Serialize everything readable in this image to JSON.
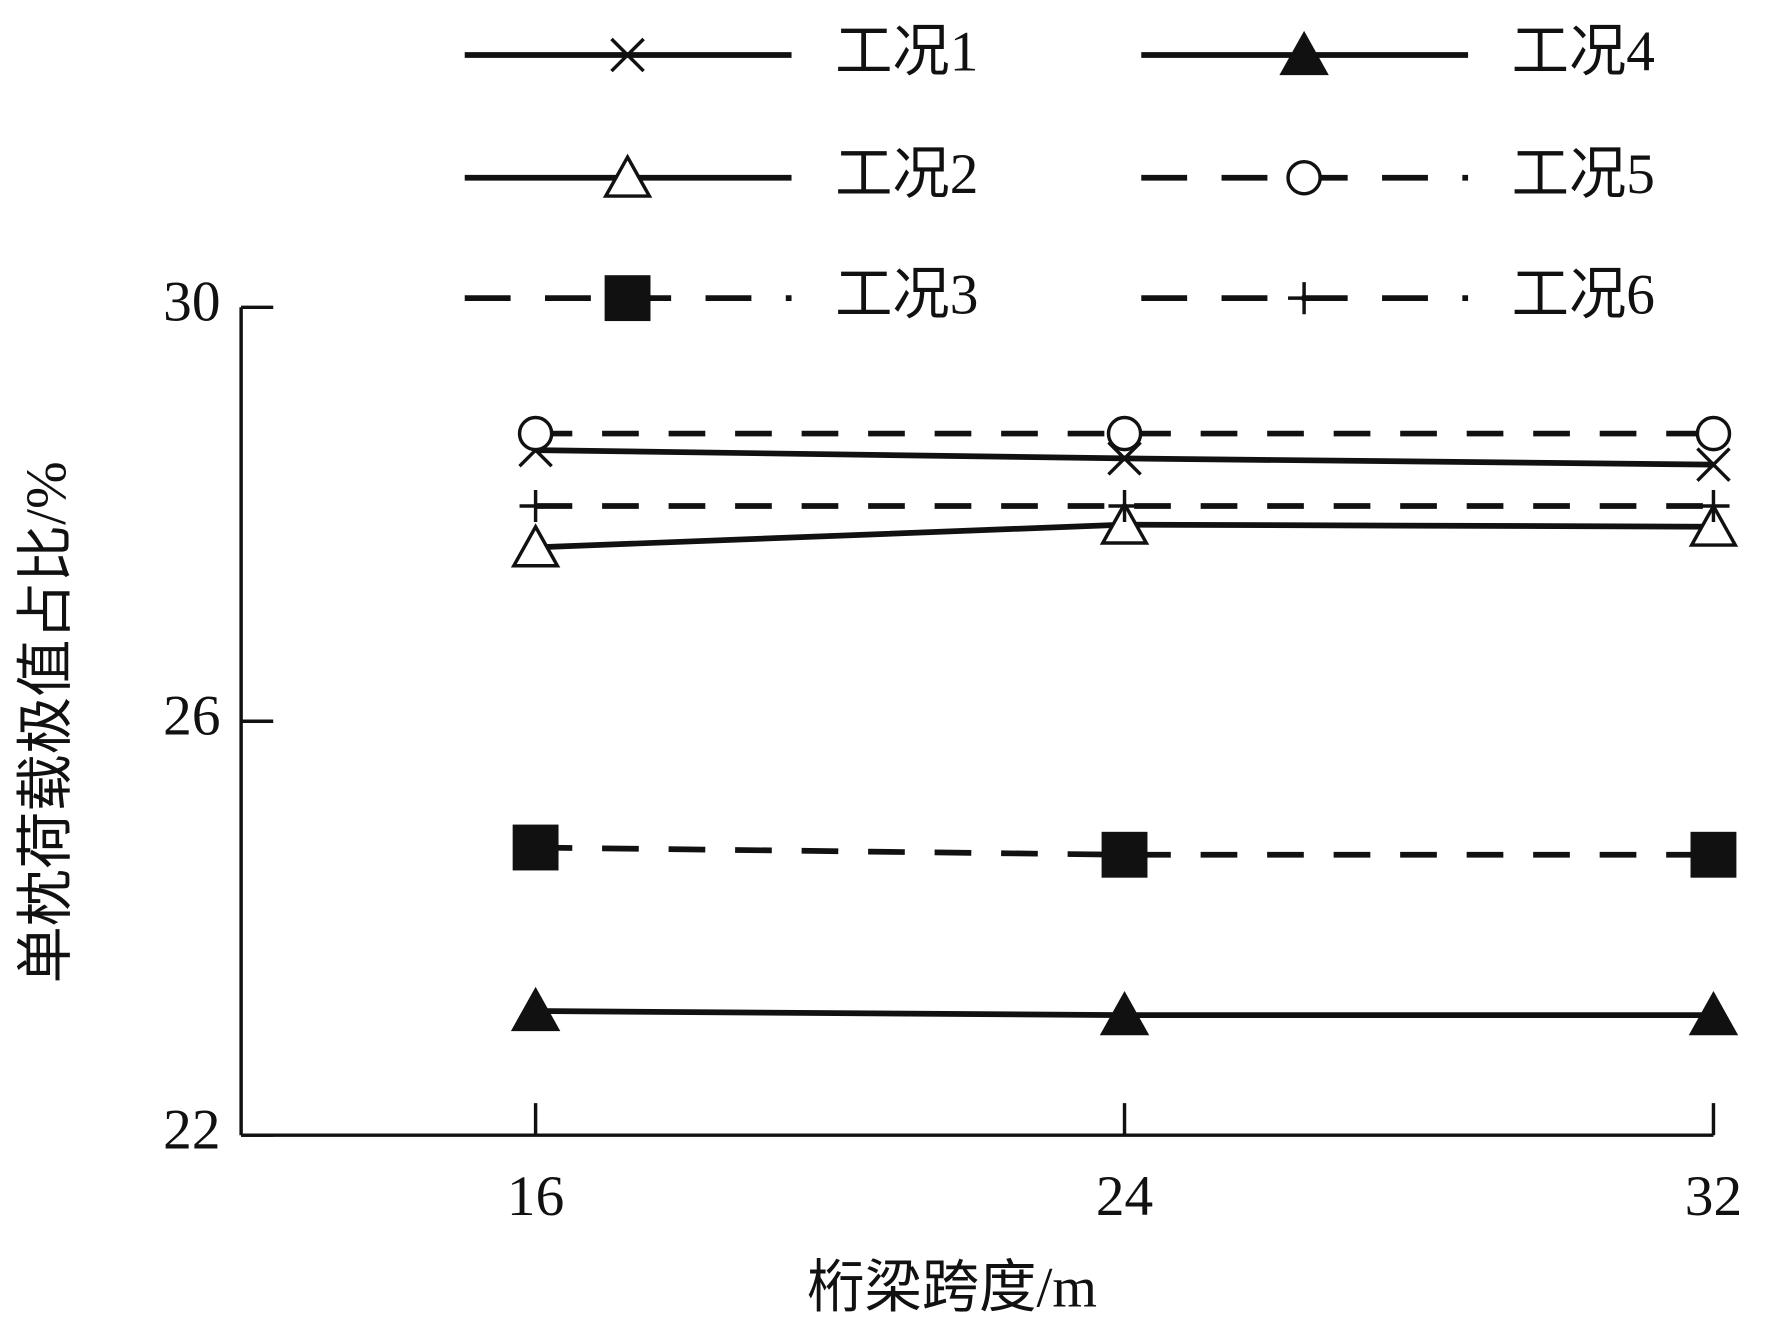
{
  "chart_data": {
    "type": "line",
    "xlabel": "桁梁跨度/m",
    "ylabel": "单枕荷载极值占比/%",
    "x": [
      16,
      24,
      32
    ],
    "xlim": [
      12,
      32
    ],
    "xticks": [
      16,
      24,
      32
    ],
    "ylim": [
      22,
      30
    ],
    "yticks": [
      22,
      26,
      30
    ],
    "series": [
      {
        "name": "工况1",
        "color": "#111111",
        "marker": "x",
        "dashed": false,
        "values": [
          28.62,
          28.54,
          28.48
        ]
      },
      {
        "name": "工况2",
        "color": "#111111",
        "marker": "triangle-open",
        "dashed": false,
        "values": [
          27.68,
          27.9,
          27.88
        ]
      },
      {
        "name": "工况3",
        "color": "#111111",
        "marker": "square",
        "dashed": true,
        "values": [
          24.78,
          24.71,
          24.71
        ]
      },
      {
        "name": "工况4",
        "color": "#111111",
        "marker": "triangle",
        "dashed": false,
        "values": [
          23.2,
          23.16,
          23.16
        ]
      },
      {
        "name": "工况5",
        "color": "#111111",
        "marker": "circle-open",
        "dashed": true,
        "values": [
          28.78,
          28.78,
          28.78
        ]
      },
      {
        "name": "工况6",
        "color": "#111111",
        "marker": "plus",
        "dashed": true,
        "values": [
          28.08,
          28.08,
          28.08
        ]
      }
    ]
  }
}
